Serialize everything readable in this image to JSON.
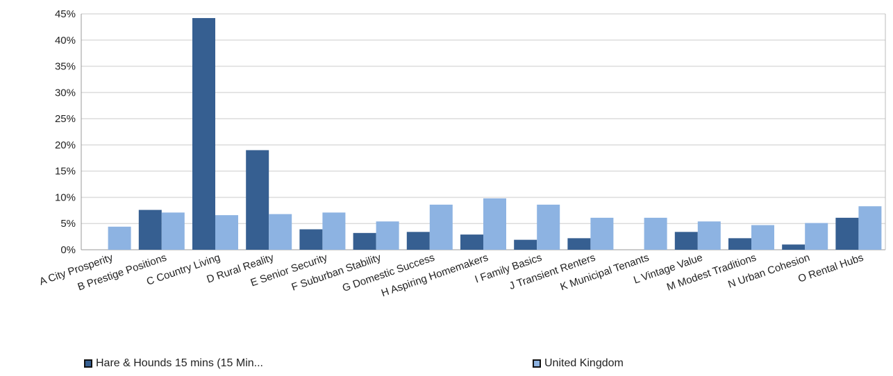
{
  "chart_data": {
    "type": "bar",
    "categories": [
      "A City Prosperity",
      "B Prestige Positions",
      "C Country Living",
      "D Rural Reality",
      "E Senior Security",
      "F Suburban Stability",
      "G Domestic Success",
      "H Aspiring Homemakers",
      "I Family Basics",
      "J Transient Renters",
      "K Municipal Tenants",
      "L Vintage Value",
      "M Modest Traditions",
      "N Urban Cohesion",
      "O Rental Hubs"
    ],
    "series": [
      {
        "name": "Hare & Hounds 15 mins (15 Min...",
        "color": "#365f91",
        "values": [
          0,
          7.6,
          44.2,
          19.0,
          3.9,
          3.2,
          3.4,
          2.9,
          1.9,
          2.2,
          0,
          3.4,
          2.2,
          1.0,
          6.1
        ]
      },
      {
        "name": "United Kingdom",
        "color": "#8db3e2",
        "values": [
          4.4,
          7.1,
          6.6,
          6.8,
          7.1,
          5.4,
          8.6,
          9.8,
          8.6,
          6.1,
          6.1,
          5.4,
          4.7,
          5.1,
          8.3
        ]
      }
    ],
    "y_ticks": [
      "0%",
      "5%",
      "10%",
      "15%",
      "20%",
      "25%",
      "30%",
      "35%",
      "40%",
      "45%"
    ],
    "ylim": [
      0,
      45
    ],
    "grid": true,
    "legend_position": "bottom"
  }
}
